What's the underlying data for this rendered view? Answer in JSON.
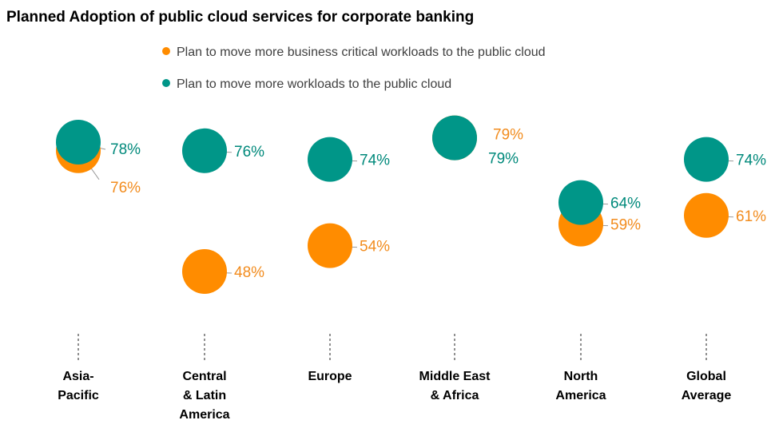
{
  "chart_data": {
    "type": "scatter",
    "title": "Planned Adoption of public cloud services for corporate banking",
    "categories": [
      [
        "Asia-",
        "Pacific"
      ],
      [
        "Central",
        "& Latin",
        "America"
      ],
      [
        "Europe"
      ],
      [
        "Middle East",
        "& Africa"
      ],
      [
        "North",
        "America"
      ],
      [
        "Global",
        "Average"
      ]
    ],
    "series": [
      {
        "name": "Plan to move more business critical workloads to the public cloud",
        "color": "#FF8C00",
        "values": [
          76,
          48,
          54,
          79,
          59,
          61
        ],
        "labels": [
          "76%",
          "48%",
          "54%",
          "79%",
          "59%",
          "61%"
        ]
      },
      {
        "name": "Plan to move more workloads to the public cloud",
        "color": "#009688",
        "values": [
          78,
          76,
          74,
          79,
          64,
          74
        ],
        "labels": [
          "78%",
          "76%",
          "74%",
          "79%",
          "64%",
          "74%"
        ]
      }
    ],
    "label_colors": [
      "#F28C1E",
      "#00897B"
    ],
    "ylim": [
      40,
      82
    ],
    "xlabel": "",
    "ylabel": "",
    "grid": false,
    "legend_position": "top"
  }
}
